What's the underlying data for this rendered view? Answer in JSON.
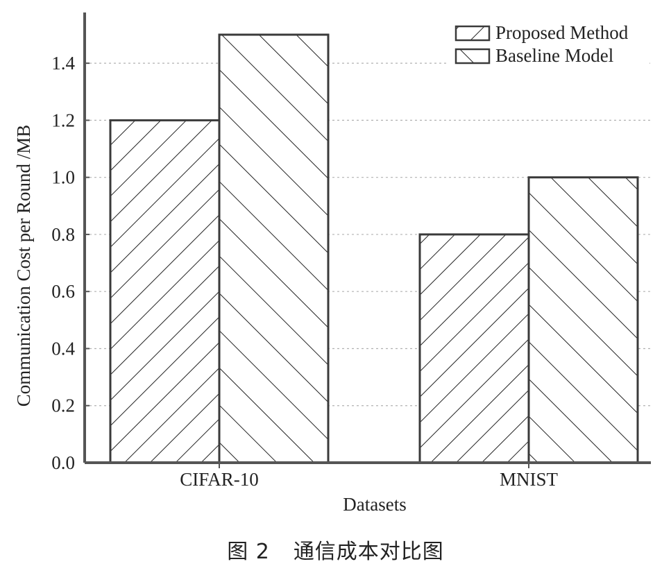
{
  "chart_data": {
    "type": "bar",
    "categories": [
      "CIFAR-10",
      "MNIST"
    ],
    "series": [
      {
        "name": "Proposed Method",
        "values": [
          1.2,
          0.8
        ],
        "hatch": "forward-diagonal"
      },
      {
        "name": "Baseline Model",
        "values": [
          1.5,
          1.0
        ],
        "hatch": "backward-diagonal"
      }
    ],
    "xlabel": "Datasets",
    "ylabel": "Communication Cost per Round /MB",
    "ylim": [
      0,
      1.5
    ],
    "yticks": [
      "0.0",
      "0.2",
      "0.4",
      "0.6",
      "0.8",
      "1.0",
      "1.2",
      "1.4"
    ],
    "ytick_values": [
      0,
      0.2,
      0.4,
      0.6,
      0.8,
      1.0,
      1.2,
      1.4
    ],
    "grid": true,
    "legend_position": "top-right"
  },
  "caption": {
    "figure_number": "图 2",
    "title": "通信成本对比图"
  },
  "colors": {
    "axis": "#555555",
    "bar_edge": "#3a3a3a",
    "hatch": "#222222",
    "grid": "#b0b0b0"
  }
}
